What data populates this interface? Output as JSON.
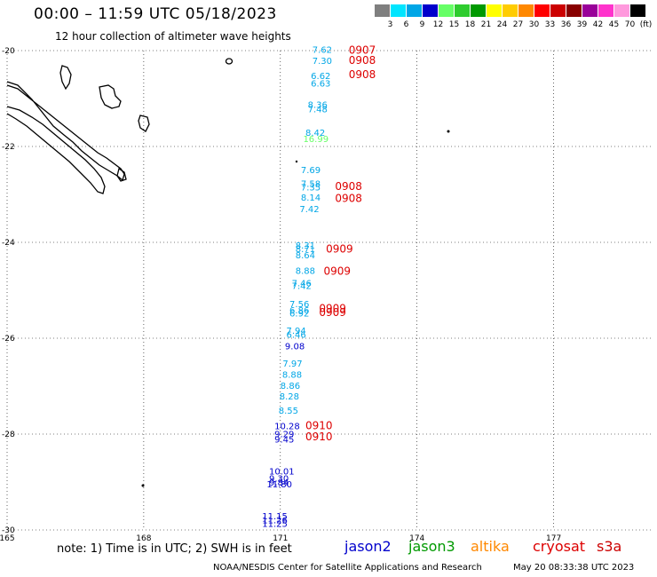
{
  "header": {
    "title": "00:00 – 11:59 UTC 05/18/2023",
    "subtitle": "12 hour collection of altimeter wave heights"
  },
  "legend": {
    "unit": "(ft)",
    "bins": [
      {
        "label": "3",
        "color": "#7f7f7f"
      },
      {
        "label": "6",
        "color": "#00e5ff"
      },
      {
        "label": "9",
        "color": "#00a6e6"
      },
      {
        "label": "12",
        "color": "#0000cc"
      },
      {
        "label": "15",
        "color": "#66ff66"
      },
      {
        "label": "18",
        "color": "#2ecc2e"
      },
      {
        "label": "21",
        "color": "#009900"
      },
      {
        "label": "24",
        "color": "#ffff00"
      },
      {
        "label": "27",
        "color": "#ffcc00"
      },
      {
        "label": "30",
        "color": "#ff8800"
      },
      {
        "label": "33",
        "color": "#ff0000"
      },
      {
        "label": "36",
        "color": "#cc0000"
      },
      {
        "label": "39",
        "color": "#880000"
      },
      {
        "label": "42",
        "color": "#990099"
      },
      {
        "label": "45",
        "color": "#ff33cc"
      },
      {
        "label": "70",
        "color": "#ff99dd"
      },
      {
        "label": "",
        "color": "#000000"
      }
    ]
  },
  "axes": {
    "lat_ticks": [
      "-20",
      "-22",
      "-24",
      "-26",
      "-28",
      "-30"
    ],
    "lon_ticks": [
      "165",
      "168",
      "171",
      "174",
      "177"
    ]
  },
  "observations": [
    {
      "value": "7.62",
      "lat": -19.97,
      "lon": 171.7,
      "color": "#00a6e6"
    },
    {
      "value": "7.30",
      "lat": -20.2,
      "lon": 171.7,
      "color": "#00a6e6"
    },
    {
      "value": "6.62",
      "lat": -20.52,
      "lon": 171.67,
      "color": "#00a6e6"
    },
    {
      "value": "6.63",
      "lat": -20.68,
      "lon": 171.67,
      "color": "#00a6e6"
    },
    {
      "value": "8.36",
      "lat": -21.12,
      "lon": 171.6,
      "color": "#00a6e6"
    },
    {
      "value": "7.48",
      "lat": -21.21,
      "lon": 171.6,
      "color": "#00a6e6"
    },
    {
      "value": "8.42",
      "lat": -21.7,
      "lon": 171.55,
      "color": "#00a6e6"
    },
    {
      "value": "16.99",
      "lat": -21.83,
      "lon": 171.5,
      "color": "#66ff66"
    },
    {
      "value": "7.69",
      "lat": -22.48,
      "lon": 171.45,
      "color": "#00a6e6"
    },
    {
      "value": "7.58",
      "lat": -22.77,
      "lon": 171.45,
      "color": "#00a6e6"
    },
    {
      "value": "7.35",
      "lat": -22.84,
      "lon": 171.45,
      "color": "#00a6e6"
    },
    {
      "value": "8.14",
      "lat": -23.06,
      "lon": 171.45,
      "color": "#00a6e6"
    },
    {
      "value": "7.42",
      "lat": -23.3,
      "lon": 171.42,
      "color": "#00a6e6"
    },
    {
      "value": "8.31",
      "lat": -24.06,
      "lon": 171.33,
      "color": "#00a6e6"
    },
    {
      "value": "8.71",
      "lat": -24.13,
      "lon": 171.33,
      "color": "#00a6e6"
    },
    {
      "value": "8.64",
      "lat": -24.26,
      "lon": 171.33,
      "color": "#00a6e6"
    },
    {
      "value": "8.88",
      "lat": -24.58,
      "lon": 171.33,
      "color": "#00a6e6"
    },
    {
      "value": "7.46",
      "lat": -24.84,
      "lon": 171.25,
      "color": "#00a6e6"
    },
    {
      "value": "7.42",
      "lat": -24.9,
      "lon": 171.25,
      "color": "#00a6e6"
    },
    {
      "value": "7.56",
      "lat": -25.28,
      "lon": 171.2,
      "color": "#00a6e6"
    },
    {
      "value": "6.86",
      "lat": -25.41,
      "lon": 171.2,
      "color": "#00a6e6"
    },
    {
      "value": "6.92",
      "lat": -25.47,
      "lon": 171.2,
      "color": "#00a6e6"
    },
    {
      "value": "7.94",
      "lat": -25.83,
      "lon": 171.13,
      "color": "#00a6e6"
    },
    {
      "value": "6.46",
      "lat": -25.92,
      "lon": 171.13,
      "color": "#00a6e6"
    },
    {
      "value": "9.08",
      "lat": -26.16,
      "lon": 171.1,
      "color": "#0000cc"
    },
    {
      "value": "7.97",
      "lat": -26.52,
      "lon": 171.05,
      "color": "#00a6e6"
    },
    {
      "value": "8.88",
      "lat": -26.75,
      "lon": 171.04,
      "color": "#00a6e6"
    },
    {
      "value": "8.86",
      "lat": -26.98,
      "lon": 171.0,
      "color": "#00a6e6"
    },
    {
      "value": "8.28",
      "lat": -27.2,
      "lon": 170.98,
      "color": "#00a6e6"
    },
    {
      "value": "8.55",
      "lat": -27.5,
      "lon": 170.96,
      "color": "#00a6e6"
    },
    {
      "value": "10.28",
      "lat": -27.82,
      "lon": 170.87,
      "color": "#0000cc"
    },
    {
      "value": "9.29",
      "lat": -27.99,
      "lon": 170.87,
      "color": "#0000cc"
    },
    {
      "value": "9.45",
      "lat": -28.1,
      "lon": 170.87,
      "color": "#0000cc"
    },
    {
      "value": "10.01",
      "lat": -28.77,
      "lon": 170.75,
      "color": "#0000cc"
    },
    {
      "value": "9.30",
      "lat": -28.92,
      "lon": 170.75,
      "color": "#0000cc"
    },
    {
      "value": "9.84",
      "lat": -29.0,
      "lon": 170.75,
      "color": "#0000cc"
    },
    {
      "value": "11.80",
      "lat": -29.04,
      "lon": 170.7,
      "color": "#0000cc"
    },
    {
      "value": "11.15",
      "lat": -29.7,
      "lon": 170.6,
      "color": "#0000cc"
    },
    {
      "value": "11.26",
      "lat": -29.79,
      "lon": 170.6,
      "color": "#0000cc"
    },
    {
      "value": "11.25",
      "lat": -29.86,
      "lon": 170.6,
      "color": "#0000cc"
    }
  ],
  "pass_times": [
    {
      "value": "0907",
      "lat": -19.99,
      "lon": 172.5,
      "color": "#dd0000"
    },
    {
      "value": "0908",
      "lat": -20.2,
      "lon": 172.5,
      "color": "#dd0000"
    },
    {
      "value": "0908",
      "lat": -20.5,
      "lon": 172.5,
      "color": "#dd0000"
    },
    {
      "value": "0908",
      "lat": -22.83,
      "lon": 172.2,
      "color": "#dd0000"
    },
    {
      "value": "0908",
      "lat": -23.08,
      "lon": 172.2,
      "color": "#dd0000"
    },
    {
      "value": "0909",
      "lat": -24.14,
      "lon": 172.0,
      "color": "#dd0000"
    },
    {
      "value": "0909",
      "lat": -24.6,
      "lon": 171.95,
      "color": "#dd0000"
    },
    {
      "value": "0909",
      "lat": -25.38,
      "lon": 171.85,
      "color": "#dd0000"
    },
    {
      "value": "0909",
      "lat": -25.46,
      "lon": 171.85,
      "color": "#dd0000"
    },
    {
      "value": "0910",
      "lat": -27.82,
      "lon": 171.55,
      "color": "#dd0000"
    },
    {
      "value": "0910",
      "lat": -28.06,
      "lon": 171.55,
      "color": "#dd0000"
    }
  ],
  "footer": {
    "note": "note: 1) Time is in UTC; 2) SWH is in feet",
    "missions": [
      {
        "name": "jason2",
        "color": "#0000cc"
      },
      {
        "name": "jason3",
        "color": "#009900"
      },
      {
        "name": "altika",
        "color": "#ff8800"
      },
      {
        "name": "cryosat",
        "color": "#dd0000"
      },
      {
        "name": "s3a",
        "color": "#cc0000"
      }
    ],
    "credit": "NOAA/NESDIS Center for Satellite Applications and Research",
    "timestamp": "May 20 08:33:38 UTC 2023"
  }
}
